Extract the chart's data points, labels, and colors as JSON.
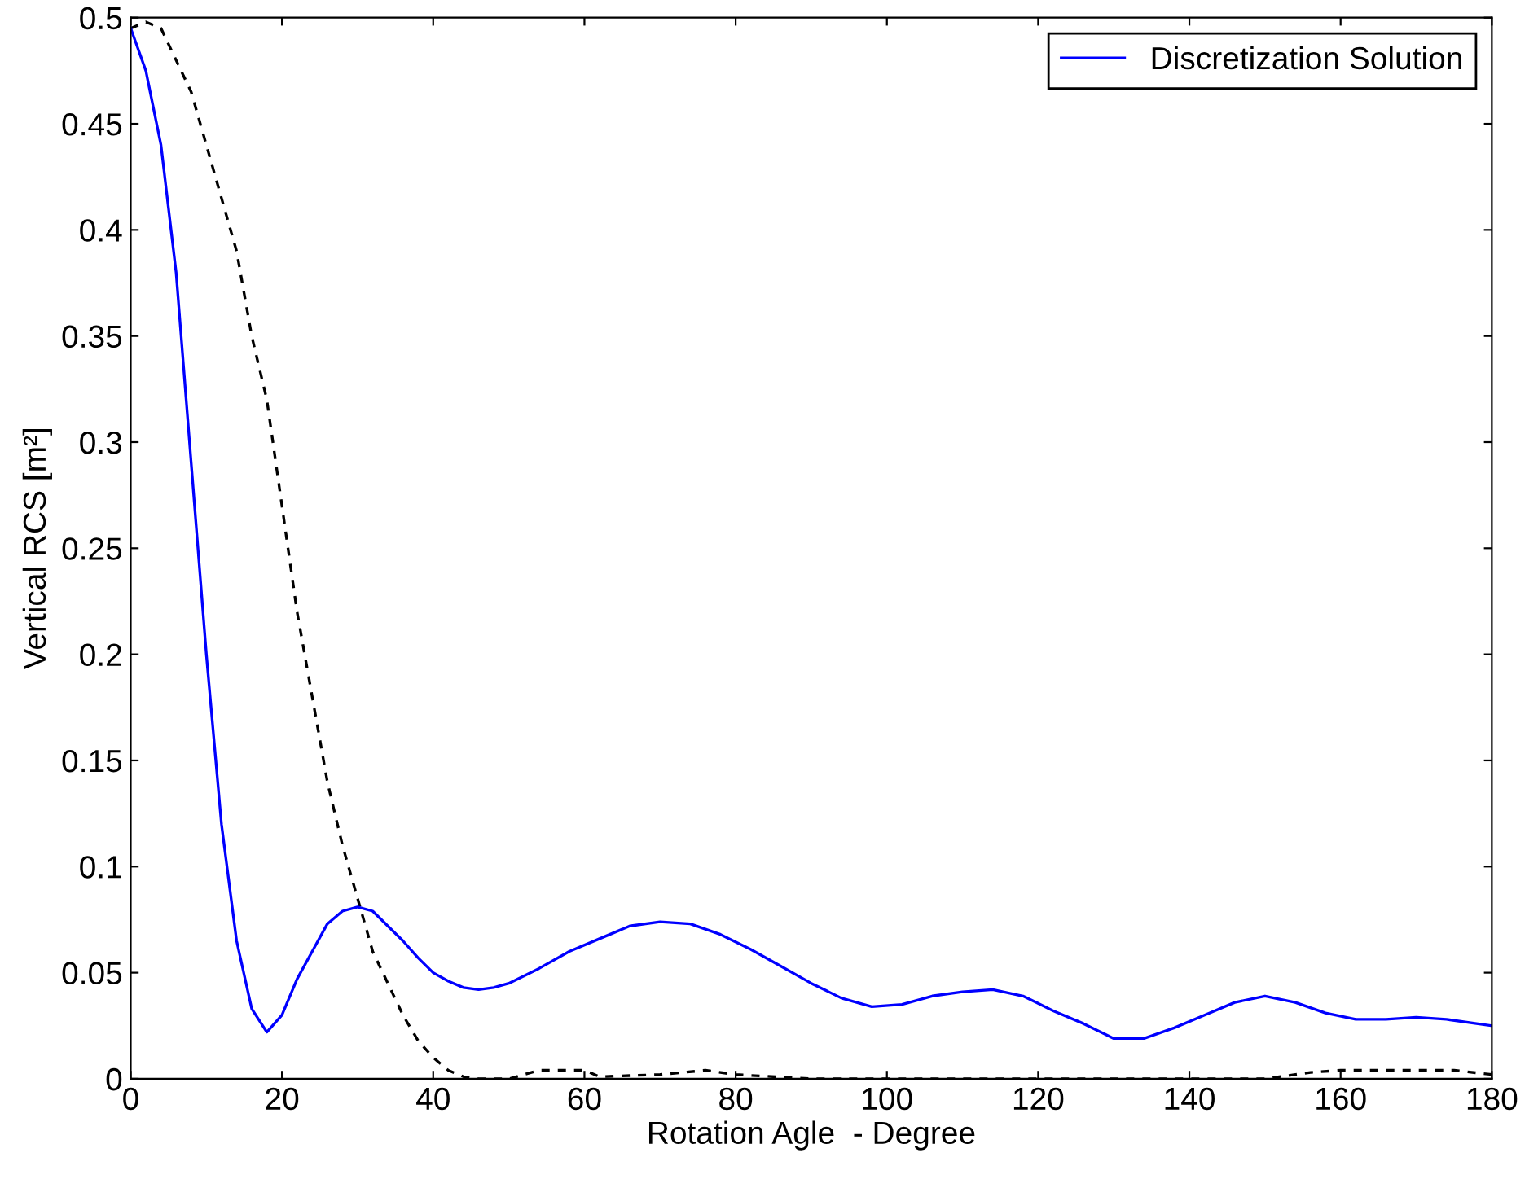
{
  "chart_data": {
    "type": "line",
    "xlabel": "Rotation Agle  - Degree",
    "ylabel": "Vertical RCS [m²]",
    "xlim": [
      0,
      180
    ],
    "ylim": [
      0,
      0.5
    ],
    "xticks": [
      0,
      20,
      40,
      60,
      80,
      100,
      120,
      140,
      160,
      180
    ],
    "yticks": [
      0,
      0.05,
      0.1,
      0.15,
      0.2,
      0.25,
      0.3,
      0.35,
      0.4,
      0.45,
      0.5
    ],
    "grid": false,
    "legend": "top right",
    "series": [
      {
        "color": "#000000",
        "line_style": "dashed",
        "x": [
          0,
          2,
          4,
          6,
          8,
          10,
          12,
          14,
          16,
          18,
          20,
          22,
          24,
          26,
          28,
          30,
          32,
          34,
          36,
          38,
          40,
          42,
          44,
          46,
          50,
          54,
          60,
          62,
          70,
          76,
          80,
          90,
          150,
          156,
          160,
          175,
          180
        ],
        "values": [
          0.495,
          0.498,
          0.495,
          0.48,
          0.465,
          0.44,
          0.415,
          0.39,
          0.35,
          0.32,
          0.27,
          0.22,
          0.18,
          0.14,
          0.11,
          0.085,
          0.06,
          0.045,
          0.03,
          0.018,
          0.01,
          0.004,
          0.001,
          0,
          0,
          0.004,
          0.004,
          0.001,
          0.002,
          0.004,
          0.002,
          0,
          0,
          0.003,
          0.004,
          0.004,
          0.002
        ]
      },
      {
        "name": "Discretization Solution",
        "color": "#0000ff",
        "line_style": "solid",
        "x": [
          0,
          2,
          4,
          6,
          8,
          10,
          12,
          14,
          16,
          18,
          20,
          22,
          24,
          26,
          28,
          30,
          32,
          34,
          36,
          38,
          40,
          42,
          44,
          46,
          48,
          50,
          54,
          58,
          62,
          66,
          70,
          74,
          78,
          82,
          86,
          90,
          94,
          98,
          102,
          106,
          110,
          114,
          118,
          122,
          126,
          130,
          134,
          138,
          142,
          146,
          150,
          154,
          158,
          162,
          166,
          170,
          174,
          180
        ],
        "values": [
          0.495,
          0.475,
          0.44,
          0.38,
          0.29,
          0.2,
          0.12,
          0.065,
          0.033,
          0.022,
          0.03,
          0.047,
          0.06,
          0.073,
          0.079,
          0.081,
          0.079,
          0.072,
          0.065,
          0.057,
          0.05,
          0.046,
          0.043,
          0.042,
          0.043,
          0.045,
          0.052,
          0.06,
          0.066,
          0.072,
          0.074,
          0.073,
          0.068,
          0.061,
          0.053,
          0.045,
          0.038,
          0.034,
          0.035,
          0.039,
          0.041,
          0.042,
          0.039,
          0.032,
          0.026,
          0.019,
          0.019,
          0.024,
          0.03,
          0.036,
          0.039,
          0.036,
          0.031,
          0.028,
          0.028,
          0.029,
          0.028,
          0.025
        ]
      }
    ]
  }
}
